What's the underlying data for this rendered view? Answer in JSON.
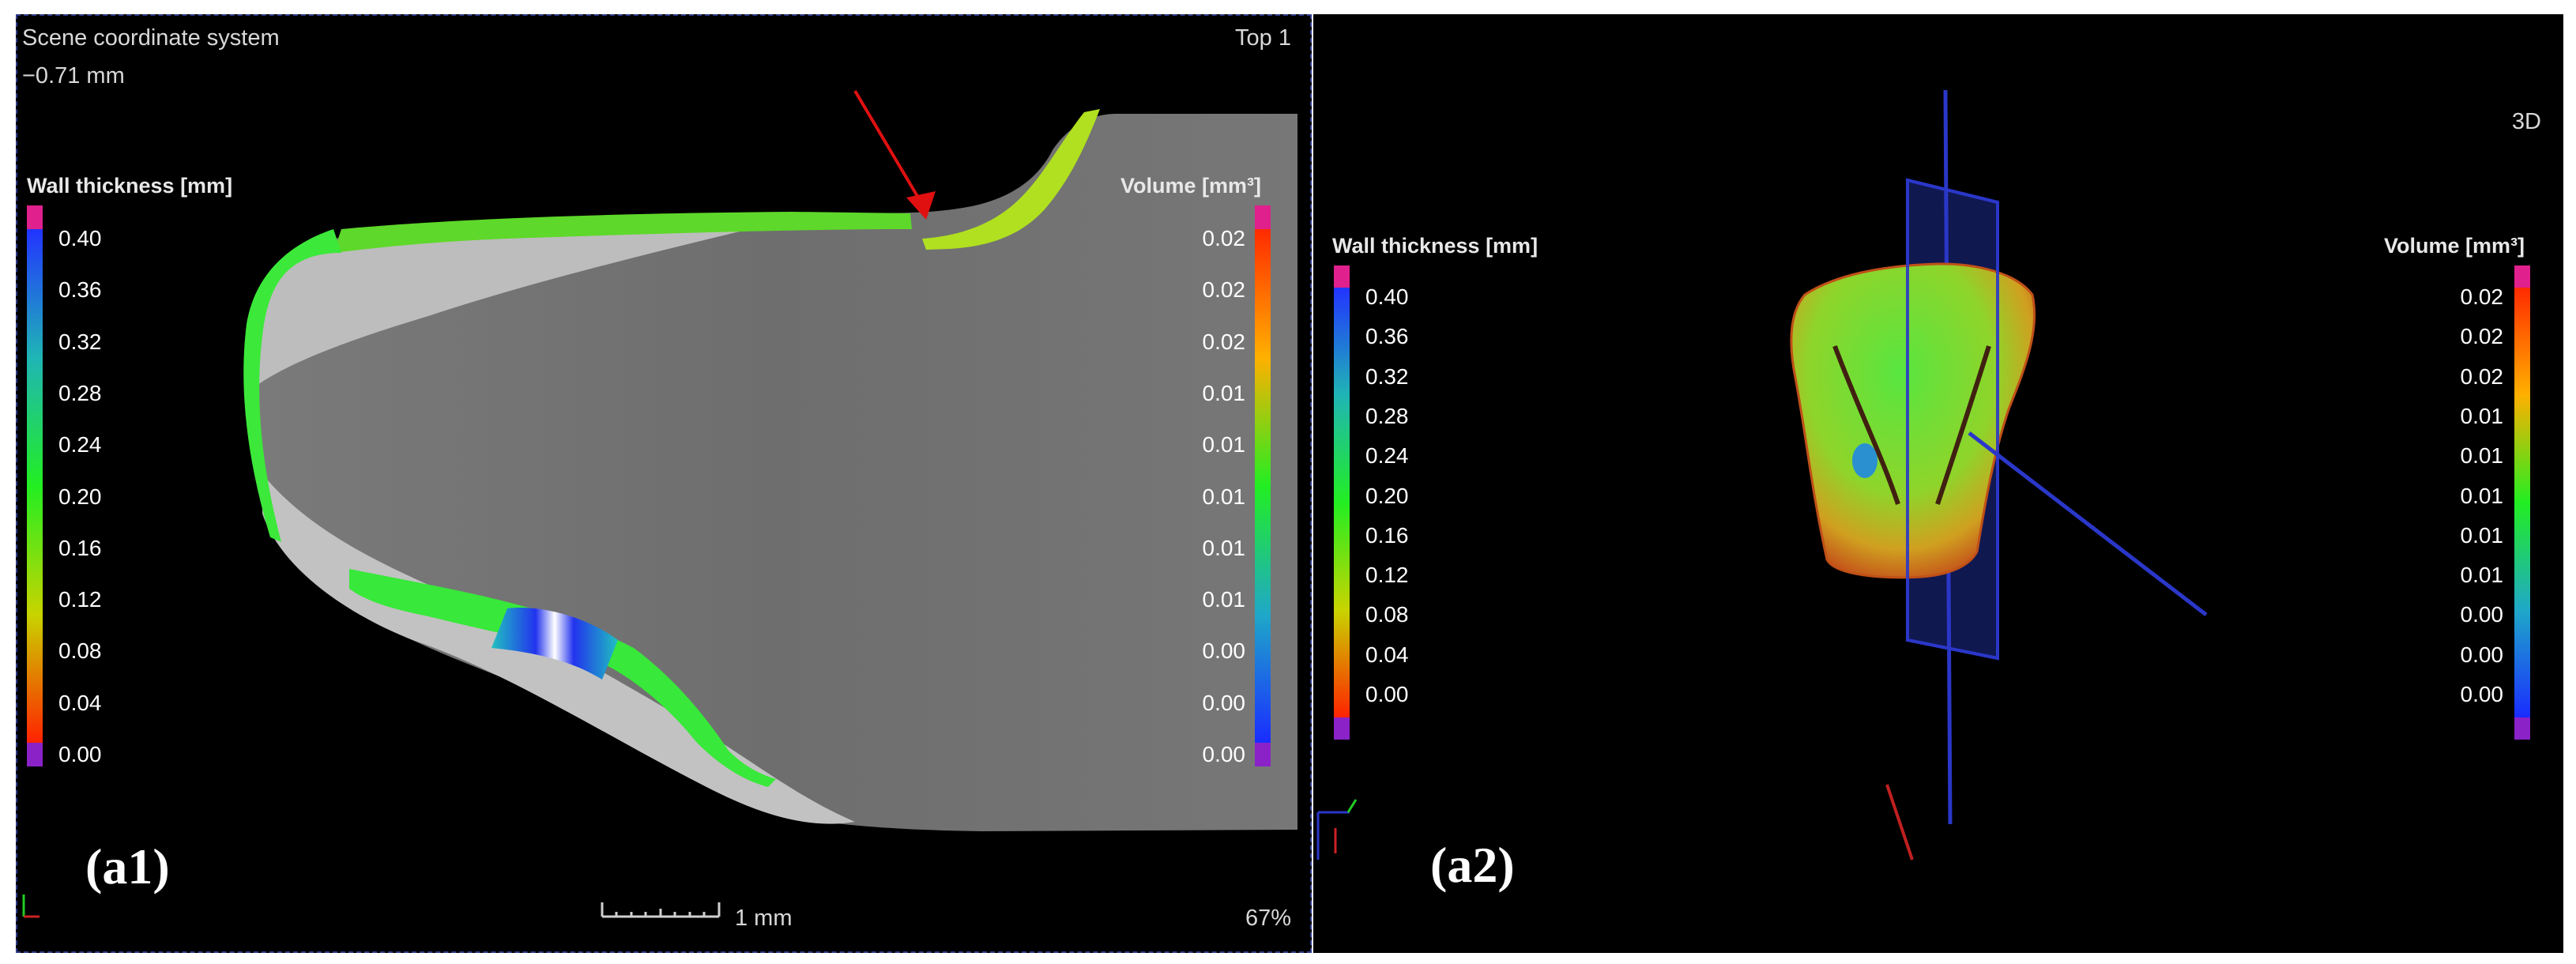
{
  "left_panel": {
    "coord_system_label": "Scene coordinate system",
    "slice_position": "−0.71 mm",
    "view_name": "Top 1",
    "panel_label": "(a1)",
    "scale_label": "1 mm",
    "zoom": "67%",
    "wall_thickness": {
      "title": "Wall thickness [mm]",
      "ticks": [
        "0.40",
        "0.36",
        "0.32",
        "0.28",
        "0.24",
        "0.20",
        "0.16",
        "0.12",
        "0.08",
        "0.04",
        "0.00"
      ]
    },
    "volume": {
      "title": "Volume [mm³]",
      "ticks": [
        "0.02",
        "0.02",
        "0.02",
        "0.01",
        "0.01",
        "0.01",
        "0.01",
        "0.01",
        "0.00",
        "0.00",
        "0.00"
      ]
    }
  },
  "right_panel": {
    "view_name": "3D",
    "panel_label": "(a2)",
    "wall_thickness": {
      "title": "Wall thickness [mm]",
      "ticks": [
        "0.40",
        "0.36",
        "0.32",
        "0.28",
        "0.24",
        "0.20",
        "0.16",
        "0.12",
        "0.08",
        "0.04",
        "0.00"
      ]
    },
    "volume": {
      "title": "Volume [mm³]",
      "ticks": [
        "0.02",
        "0.02",
        "0.02",
        "0.01",
        "0.01",
        "0.01",
        "0.01",
        "0.01",
        "0.00",
        "0.00",
        "0.00"
      ]
    }
  },
  "colors": {
    "cap_top": "#e0208c",
    "cap_bottom": "#8a22c8",
    "thickness_gradient": [
      "#2233ff",
      "#1fb5b5",
      "#22ee22",
      "#c8d400",
      "#ff2200"
    ],
    "volume_gradient": [
      "#ff2a00",
      "#ffb000",
      "#22ee22",
      "#1fa8c8",
      "#1a2cff"
    ],
    "defect_arrow": "#e01010",
    "cut_plane": "#2a37c8"
  }
}
